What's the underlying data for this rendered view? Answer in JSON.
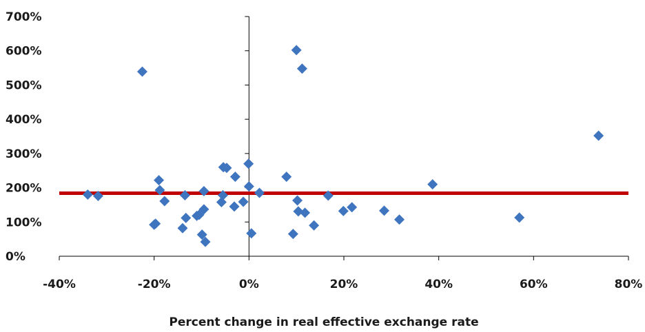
{
  "chart_data": {
    "type": "scatter",
    "title": "",
    "xlabel": "Percent change in real effective exchange rate",
    "ylabel": "",
    "xlim": [
      -40,
      80
    ],
    "ylim": [
      0,
      700
    ],
    "x_ticks": [
      "-40%",
      "-20%",
      "0%",
      "20%",
      "40%",
      "60%",
      "80%"
    ],
    "y_ticks": [
      "0%",
      "100%",
      "200%",
      "300%",
      "400%",
      "500%",
      "600%",
      "700%"
    ],
    "grid": false,
    "marker_color": "#3f74bf",
    "line_color": "#c00000",
    "reference_line": {
      "x": [
        -40,
        80
      ],
      "y": [
        184,
        184
      ]
    },
    "points": [
      {
        "x": -34.0,
        "y": 180
      },
      {
        "x": -31.8,
        "y": 176
      },
      {
        "x": -22.5,
        "y": 539
      },
      {
        "x": -19.0,
        "y": 222
      },
      {
        "x": -18.8,
        "y": 193
      },
      {
        "x": -17.8,
        "y": 161
      },
      {
        "x": -20.0,
        "y": 92
      },
      {
        "x": -19.7,
        "y": 95
      },
      {
        "x": -14.0,
        "y": 82
      },
      {
        "x": -13.3,
        "y": 112
      },
      {
        "x": -13.5,
        "y": 178
      },
      {
        "x": -11.0,
        "y": 118
      },
      {
        "x": -10.5,
        "y": 121
      },
      {
        "x": -9.5,
        "y": 137
      },
      {
        "x": -9.5,
        "y": 190
      },
      {
        "x": -9.9,
        "y": 63
      },
      {
        "x": -9.2,
        "y": 42
      },
      {
        "x": -5.8,
        "y": 158
      },
      {
        "x": -5.5,
        "y": 178
      },
      {
        "x": -5.4,
        "y": 260
      },
      {
        "x": -4.7,
        "y": 258
      },
      {
        "x": -2.9,
        "y": 232
      },
      {
        "x": -3.1,
        "y": 145
      },
      {
        "x": -1.2,
        "y": 159
      },
      {
        "x": -0.1,
        "y": 270
      },
      {
        "x": 0.0,
        "y": 204
      },
      {
        "x": 0.5,
        "y": 67
      },
      {
        "x": 2.2,
        "y": 185
      },
      {
        "x": 7.9,
        "y": 232
      },
      {
        "x": 10.0,
        "y": 602
      },
      {
        "x": 11.2,
        "y": 548
      },
      {
        "x": 10.2,
        "y": 163
      },
      {
        "x": 10.4,
        "y": 131
      },
      {
        "x": 11.8,
        "y": 127
      },
      {
        "x": 9.3,
        "y": 65
      },
      {
        "x": 13.7,
        "y": 90
      },
      {
        "x": 16.7,
        "y": 177
      },
      {
        "x": 19.9,
        "y": 132
      },
      {
        "x": 21.7,
        "y": 143
      },
      {
        "x": 28.5,
        "y": 133
      },
      {
        "x": 31.7,
        "y": 107
      },
      {
        "x": 38.7,
        "y": 210
      },
      {
        "x": 57.0,
        "y": 113
      },
      {
        "x": 73.7,
        "y": 352
      }
    ]
  }
}
